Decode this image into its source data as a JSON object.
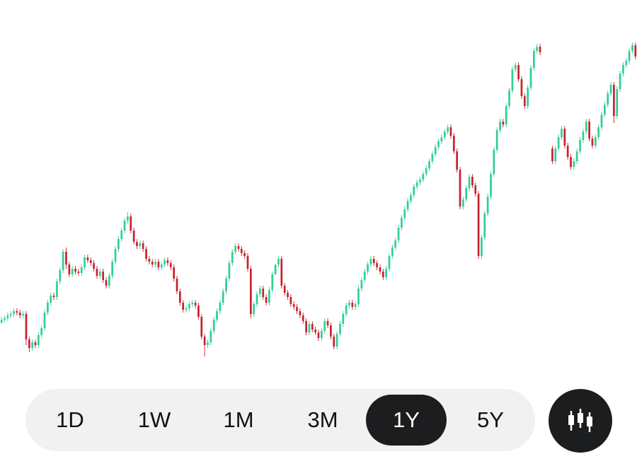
{
  "chart_data": {
    "type": "candlestick",
    "colors": {
      "up": "#2fcf93",
      "down": "#c8202d"
    },
    "ylim": [
      0,
      530
    ],
    "candles": [
      [
        456,
        452,
        448,
        458
      ],
      [
        452,
        450,
        446,
        456
      ],
      [
        450,
        446,
        442,
        454
      ],
      [
        446,
        444,
        440,
        450
      ],
      [
        444,
        440,
        436,
        448
      ],
      [
        440,
        442,
        436,
        446
      ],
      [
        442,
        446,
        438,
        450
      ],
      [
        446,
        444,
        440,
        450
      ],
      [
        444,
        480,
        440,
        488
      ],
      [
        480,
        492,
        476,
        498
      ],
      [
        492,
        484,
        480,
        496
      ],
      [
        484,
        488,
        480,
        492
      ],
      [
        488,
        474,
        470,
        492
      ],
      [
        474,
        464,
        460,
        478
      ],
      [
        464,
        442,
        438,
        468
      ],
      [
        442,
        428,
        424,
        446
      ],
      [
        428,
        418,
        414,
        432
      ],
      [
        418,
        420,
        414,
        424
      ],
      [
        420,
        398,
        394,
        424
      ],
      [
        398,
        382,
        378,
        402
      ],
      [
        382,
        356,
        352,
        386
      ],
      [
        356,
        374,
        350,
        380
      ],
      [
        374,
        388,
        370,
        392
      ],
      [
        388,
        380,
        376,
        392
      ],
      [
        380,
        384,
        376,
        388
      ],
      [
        384,
        386,
        380,
        390
      ],
      [
        386,
        378,
        374,
        390
      ],
      [
        378,
        364,
        360,
        382
      ],
      [
        364,
        368,
        360,
        372
      ],
      [
        368,
        372,
        364,
        376
      ],
      [
        372,
        380,
        368,
        384
      ],
      [
        380,
        390,
        376,
        394
      ],
      [
        390,
        384,
        380,
        394
      ],
      [
        384,
        396,
        380,
        400
      ],
      [
        396,
        404,
        392,
        408
      ],
      [
        404,
        390,
        386,
        408
      ],
      [
        390,
        370,
        366,
        394
      ],
      [
        370,
        352,
        348,
        374
      ],
      [
        352,
        338,
        334,
        356
      ],
      [
        338,
        326,
        322,
        342
      ],
      [
        326,
        312,
        308,
        330
      ],
      [
        312,
        306,
        300,
        316
      ],
      [
        306,
        326,
        302,
        330
      ],
      [
        326,
        342,
        322,
        346
      ],
      [
        342,
        348,
        338,
        352
      ],
      [
        348,
        344,
        340,
        352
      ],
      [
        344,
        352,
        340,
        356
      ],
      [
        352,
        366,
        348,
        370
      ],
      [
        366,
        370,
        362,
        374
      ],
      [
        370,
        374,
        366,
        378
      ],
      [
        374,
        370,
        366,
        378
      ],
      [
        370,
        378,
        366,
        382
      ],
      [
        378,
        374,
        370,
        382
      ],
      [
        374,
        368,
        364,
        378
      ],
      [
        368,
        372,
        364,
        376
      ],
      [
        372,
        378,
        368,
        382
      ],
      [
        378,
        394,
        374,
        398
      ],
      [
        394,
        412,
        390,
        416
      ],
      [
        412,
        428,
        408,
        432
      ],
      [
        428,
        438,
        424,
        442
      ],
      [
        438,
        436,
        432,
        442
      ],
      [
        436,
        430,
        426,
        440
      ],
      [
        430,
        428,
        424,
        434
      ],
      [
        428,
        432,
        424,
        436
      ],
      [
        432,
        448,
        428,
        452
      ],
      [
        448,
        476,
        444,
        480
      ],
      [
        476,
        488,
        472,
        504
      ],
      [
        488,
        484,
        480,
        492
      ],
      [
        484,
        468,
        464,
        488
      ],
      [
        468,
        452,
        448,
        472
      ],
      [
        452,
        440,
        436,
        456
      ],
      [
        440,
        428,
        424,
        444
      ],
      [
        428,
        412,
        408,
        432
      ],
      [
        412,
        394,
        390,
        416
      ],
      [
        394,
        372,
        368,
        398
      ],
      [
        372,
        356,
        352,
        376
      ],
      [
        356,
        348,
        344,
        360
      ],
      [
        348,
        352,
        344,
        356
      ],
      [
        352,
        358,
        348,
        362
      ],
      [
        358,
        362,
        354,
        366
      ],
      [
        362,
        380,
        358,
        384
      ],
      [
        380,
        444,
        376,
        450
      ],
      [
        444,
        430,
        426,
        448
      ],
      [
        430,
        416,
        412,
        434
      ],
      [
        416,
        408,
        404,
        420
      ],
      [
        408,
        420,
        404,
        424
      ],
      [
        420,
        428,
        416,
        432
      ],
      [
        428,
        410,
        406,
        432
      ],
      [
        410,
        388,
        384,
        414
      ],
      [
        388,
        374,
        384,
        378
      ],
      [
        374,
        366,
        362,
        378
      ],
      [
        366,
        404,
        362,
        408
      ],
      [
        404,
        414,
        400,
        418
      ],
      [
        414,
        420,
        410,
        424
      ],
      [
        420,
        430,
        416,
        434
      ],
      [
        430,
        434,
        426,
        438
      ],
      [
        434,
        440,
        430,
        444
      ],
      [
        440,
        446,
        436,
        450
      ],
      [
        446,
        454,
        442,
        458
      ],
      [
        454,
        470,
        450,
        474
      ],
      [
        470,
        458,
        454,
        474
      ],
      [
        458,
        466,
        454,
        470
      ],
      [
        466,
        470,
        462,
        474
      ],
      [
        470,
        478,
        466,
        482
      ],
      [
        478,
        468,
        464,
        482
      ],
      [
        468,
        454,
        450,
        472
      ],
      [
        454,
        460,
        450,
        464
      ],
      [
        460,
        476,
        456,
        480
      ],
      [
        476,
        490,
        472,
        494
      ],
      [
        490,
        472,
        468,
        494
      ],
      [
        472,
        458,
        454,
        476
      ],
      [
        458,
        444,
        440,
        462
      ],
      [
        444,
        432,
        428,
        448
      ],
      [
        432,
        428,
        424,
        436
      ],
      [
        428,
        434,
        424,
        438
      ],
      [
        434,
        430,
        426,
        438
      ],
      [
        430,
        408,
        404,
        434
      ],
      [
        408,
        396,
        392,
        412
      ],
      [
        396,
        384,
        380,
        400
      ],
      [
        384,
        374,
        370,
        388
      ],
      [
        374,
        366,
        362,
        378
      ],
      [
        366,
        372,
        362,
        376
      ],
      [
        372,
        378,
        368,
        382
      ],
      [
        378,
        384,
        374,
        388
      ],
      [
        384,
        392,
        380,
        396
      ],
      [
        392,
        380,
        376,
        396
      ],
      [
        380,
        362,
        358,
        384
      ],
      [
        362,
        350,
        346,
        366
      ],
      [
        350,
        340,
        336,
        354
      ],
      [
        340,
        322,
        318,
        344
      ],
      [
        322,
        308,
        304,
        326
      ],
      [
        308,
        296,
        292,
        312
      ],
      [
        296,
        284,
        280,
        300
      ],
      [
        284,
        276,
        272,
        288
      ],
      [
        276,
        264,
        260,
        280
      ],
      [
        264,
        258,
        254,
        268
      ],
      [
        258,
        254,
        250,
        262
      ],
      [
        254,
        246,
        242,
        258
      ],
      [
        246,
        238,
        234,
        250
      ],
      [
        238,
        228,
        224,
        242
      ],
      [
        228,
        218,
        214,
        232
      ],
      [
        218,
        208,
        204,
        222
      ],
      [
        208,
        200,
        196,
        212
      ],
      [
        200,
        194,
        190,
        204
      ],
      [
        194,
        186,
        182,
        198
      ],
      [
        186,
        180,
        176,
        190
      ],
      [
        180,
        192,
        176,
        196
      ],
      [
        192,
        214,
        188,
        218
      ],
      [
        214,
        240,
        210,
        244
      ],
      [
        240,
        292,
        236,
        296
      ],
      [
        292,
        282,
        278,
        296
      ],
      [
        282,
        266,
        262,
        286
      ],
      [
        266,
        250,
        246,
        270
      ],
      [
        250,
        262,
        246,
        266
      ],
      [
        262,
        274,
        258,
        278
      ],
      [
        274,
        362,
        270,
        366
      ],
      [
        362,
        336,
        332,
        366
      ],
      [
        336,
        302,
        298,
        340
      ],
      [
        302,
        278,
        274,
        306
      ],
      [
        278,
        246,
        242,
        282
      ],
      [
        246,
        212,
        208,
        250
      ],
      [
        212,
        184,
        180,
        216
      ],
      [
        184,
        172,
        168,
        188
      ],
      [
        172,
        176,
        168,
        180
      ],
      [
        176,
        150,
        146,
        180
      ],
      [
        150,
        128,
        124,
        154
      ],
      [
        128,
        98,
        94,
        132
      ],
      [
        98,
        92,
        88,
        102
      ],
      [
        92,
        112,
        88,
        116
      ],
      [
        112,
        136,
        108,
        140
      ],
      [
        136,
        150,
        132,
        154
      ],
      [
        150,
        124,
        120,
        154
      ],
      [
        124,
        96,
        92,
        128
      ],
      [
        96,
        72,
        68,
        100
      ],
      [
        72,
        66,
        62,
        76
      ],
      [
        66,
        74,
        62,
        78
      ],
      null,
      null,
      null,
      [
        210,
        228,
        206,
        232
      ],
      [
        228,
        210,
        206,
        232
      ],
      [
        210,
        194,
        190,
        214
      ],
      [
        194,
        182,
        178,
        198
      ],
      [
        182,
        206,
        178,
        210
      ],
      [
        206,
        222,
        202,
        226
      ],
      [
        222,
        236,
        218,
        240
      ],
      [
        236,
        228,
        224,
        240
      ],
      [
        228,
        214,
        210,
        232
      ],
      [
        214,
        198,
        194,
        218
      ],
      [
        198,
        186,
        182,
        202
      ],
      [
        186,
        172,
        168,
        190
      ],
      [
        172,
        196,
        168,
        200
      ],
      [
        196,
        206,
        192,
        210
      ],
      [
        206,
        194,
        190,
        210
      ],
      [
        194,
        180,
        176,
        198
      ],
      [
        180,
        162,
        158,
        184
      ],
      [
        162,
        148,
        144,
        166
      ],
      [
        148,
        132,
        128,
        152
      ],
      [
        132,
        120,
        116,
        136
      ],
      [
        120,
        164,
        116,
        174
      ],
      [
        164,
        126,
        122,
        168
      ],
      [
        126,
        104,
        100,
        130
      ],
      [
        104,
        92,
        88,
        108
      ],
      [
        92,
        86,
        82,
        96
      ],
      [
        86,
        72,
        68,
        90
      ],
      [
        72,
        64,
        60,
        76
      ],
      [
        64,
        80,
        60,
        84
      ]
    ]
  },
  "range_selector": {
    "options": [
      {
        "id": "1D",
        "label": "1D"
      },
      {
        "id": "1W",
        "label": "1W"
      },
      {
        "id": "1M",
        "label": "1M"
      },
      {
        "id": "3M",
        "label": "3M"
      },
      {
        "id": "1Y",
        "label": "1Y"
      },
      {
        "id": "5Y",
        "label": "5Y"
      }
    ],
    "selected": "1Y"
  },
  "chart_type_button": {
    "icon": "candlestick-icon"
  }
}
